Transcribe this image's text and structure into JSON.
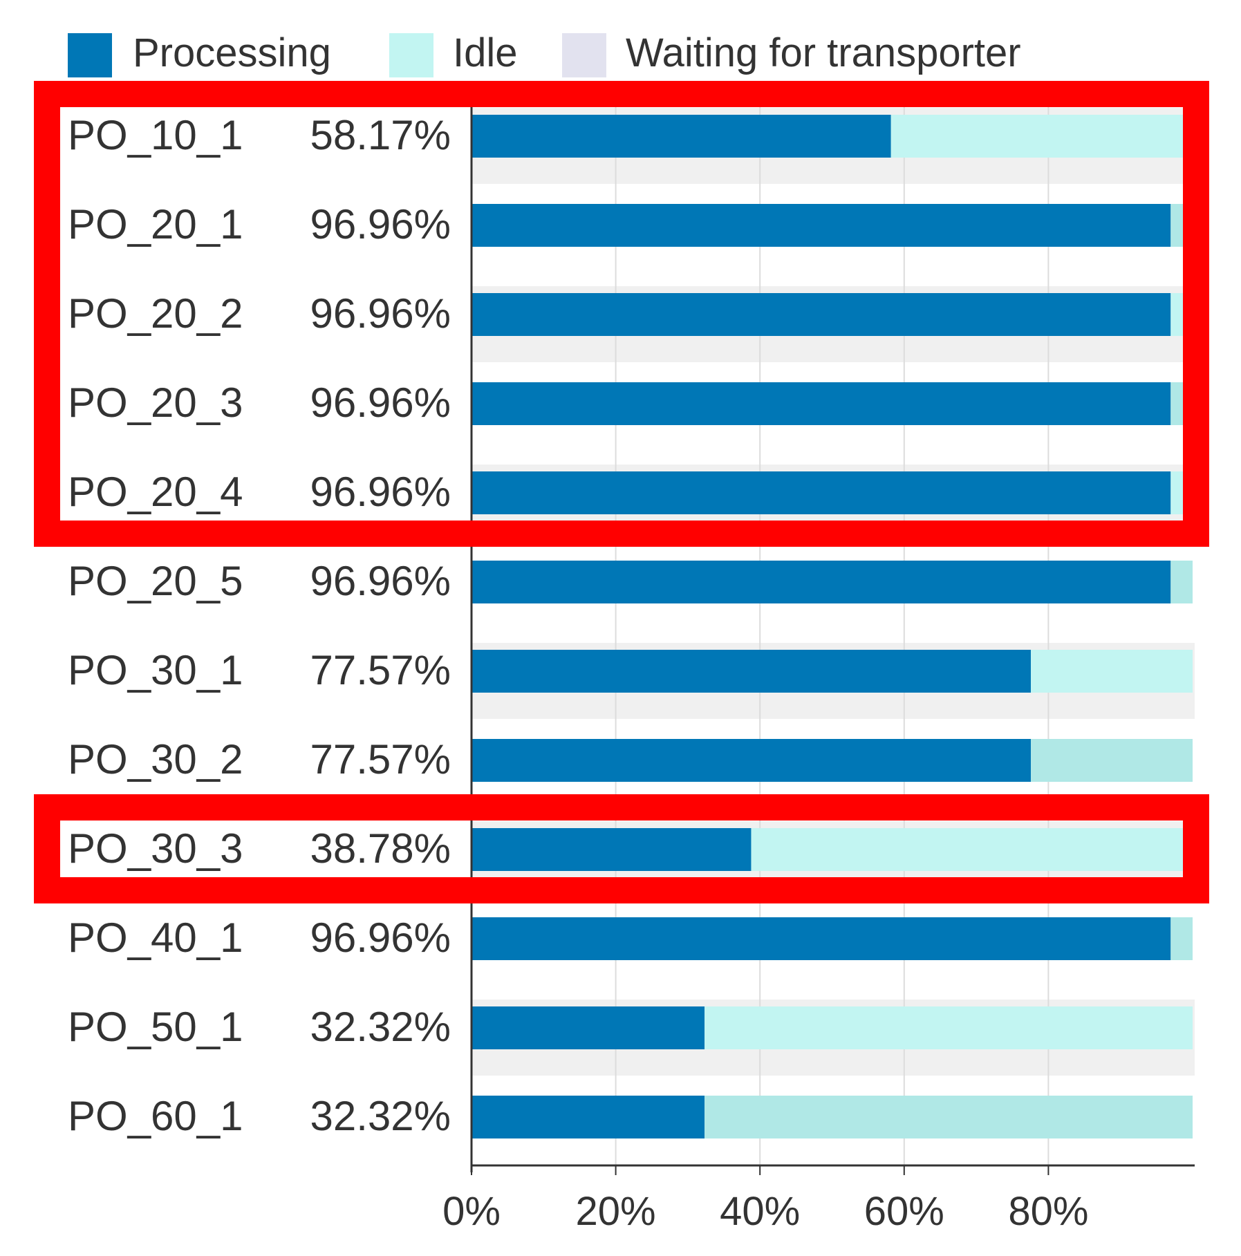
{
  "chart_data": {
    "type": "bar",
    "orientation": "horizontal",
    "stacked": true,
    "legend": {
      "placement": "top-left",
      "entries": [
        {
          "name": "Processing",
          "color": "#0077b6"
        },
        {
          "name": "Idle",
          "color": "#c2f5f2"
        },
        {
          "name": "Waiting for transporter",
          "color": "#e2e2ef"
        }
      ]
    },
    "categories": [
      "PO_10_1",
      "PO_20_1",
      "PO_20_2",
      "PO_20_3",
      "PO_20_4",
      "PO_20_5",
      "PO_30_1",
      "PO_30_2",
      "PO_30_3",
      "PO_40_1",
      "PO_50_1",
      "PO_60_1"
    ],
    "value_labels": [
      "58.17%",
      "96.96%",
      "96.96%",
      "96.96%",
      "96.96%",
      "96.96%",
      "77.57%",
      "77.57%",
      "38.78%",
      "96.96%",
      "32.32%",
      "32.32%"
    ],
    "series": [
      {
        "name": "Processing",
        "values": [
          58.17,
          96.96,
          96.96,
          96.96,
          96.96,
          96.96,
          77.57,
          77.57,
          38.78,
          96.96,
          32.32,
          32.32
        ]
      },
      {
        "name": "Idle",
        "values": [
          41.83,
          3.04,
          3.04,
          3.04,
          3.04,
          3.04,
          22.43,
          22.43,
          61.22,
          3.04,
          67.68,
          67.68
        ]
      },
      {
        "name": "Waiting for transporter",
        "values": [
          0,
          0,
          0,
          0,
          0,
          0,
          0,
          0,
          0,
          0,
          0,
          0
        ]
      }
    ],
    "xaxis": {
      "ticks": [
        "0%",
        "20%",
        "40%",
        "60%",
        "80%"
      ],
      "range": [
        0,
        100
      ]
    },
    "grid": true,
    "highlight_boxes": [
      {
        "rows": [
          "PO_10_1",
          "PO_20_1",
          "PO_20_2",
          "PO_20_3",
          "PO_20_4"
        ],
        "color": "#ff0000"
      },
      {
        "rows": [
          "PO_30_3"
        ],
        "color": "#ff0000"
      }
    ]
  }
}
